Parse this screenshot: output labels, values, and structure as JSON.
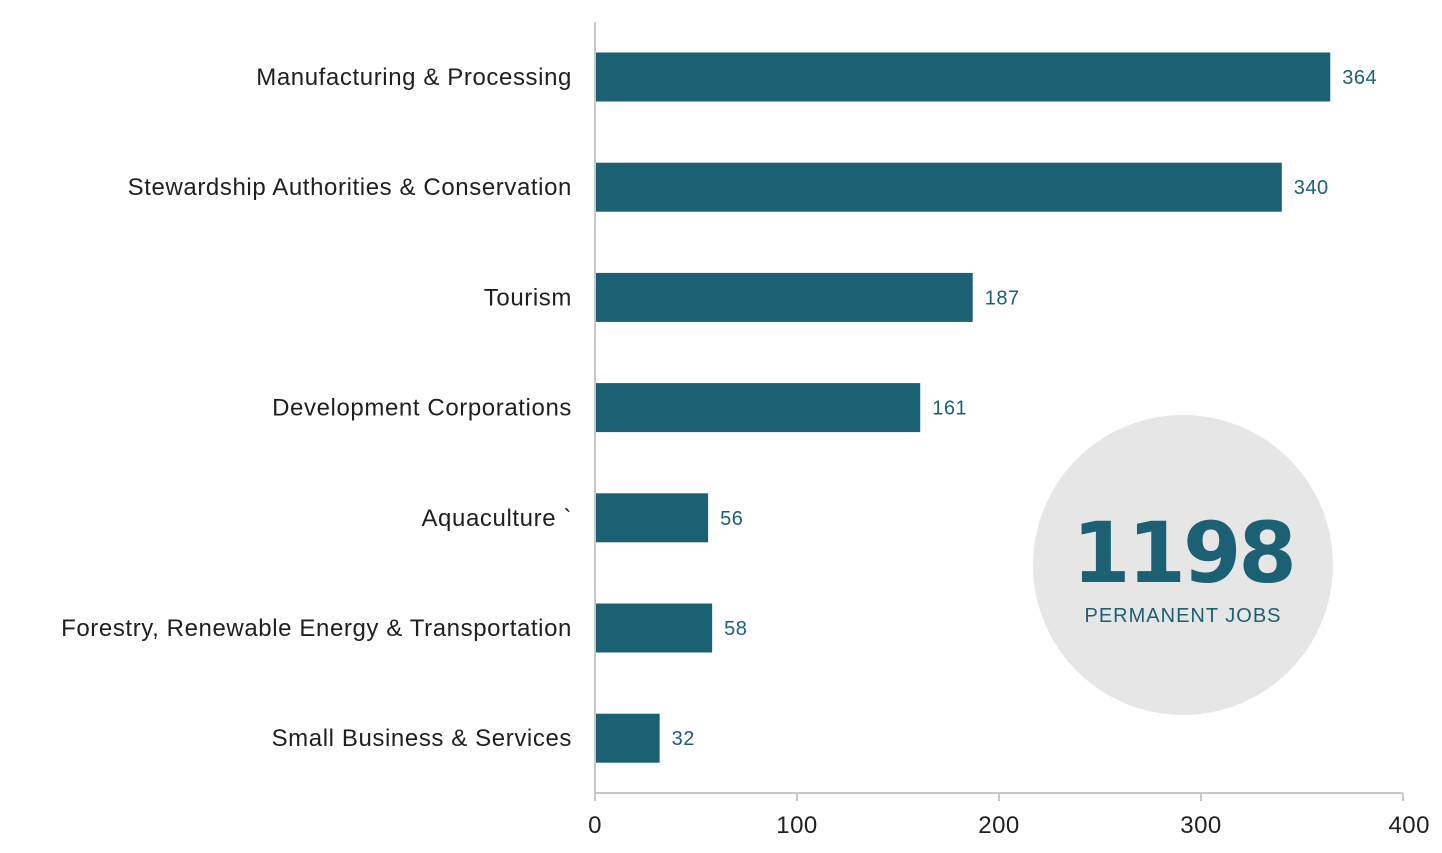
{
  "chart_data": {
    "type": "bar",
    "orientation": "horizontal",
    "categories": [
      "Manufacturing & Processing",
      "Stewardship Authorities & Conservation",
      "Tourism",
      "Development Corporations",
      "Aquaculture `",
      "Forestry, Renewable Energy & Transportation",
      "Small Business & Services"
    ],
    "values": [
      364,
      340,
      187,
      161,
      56,
      58,
      32
    ],
    "data_labels": [
      "364",
      "340",
      "187",
      "161",
      "56",
      "58",
      "32"
    ],
    "title": "",
    "xlabel": "",
    "ylabel": "",
    "xlim": [
      0,
      400
    ],
    "x_ticks": [
      0,
      100,
      200,
      300,
      400
    ],
    "x_tick_labels": [
      "0",
      "100",
      "200",
      "300",
      "400"
    ],
    "grid": false,
    "legend": "none",
    "annotation": {
      "value": "1198",
      "caption": "PERMANENT JOBS"
    }
  },
  "colors": {
    "bar": "#1b6173",
    "data_label": "#1b6173",
    "axis": "#c8c8c8",
    "badge_fill": "#e6e6e6",
    "badge_text": "#1b6173"
  }
}
